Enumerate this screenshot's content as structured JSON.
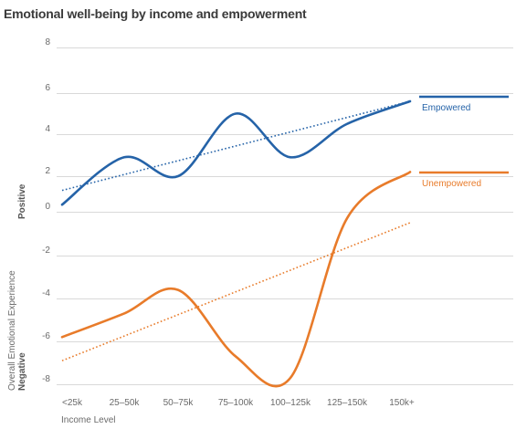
{
  "title": "Emotional well-being by income and empowerment",
  "chart_data": {
    "type": "line",
    "title": "Emotional well-being by income and empowerment",
    "xlabel": "Income Level",
    "ylabel": "Overall Emotional Experience",
    "ylabel_positive": "Positive",
    "ylabel_negative": "Negative",
    "categories": [
      "<25k",
      "25–50k",
      "50–75k",
      "75–100k",
      "100–125k",
      "125–150k",
      "150k+"
    ],
    "y_ticks": [
      "8",
      "6",
      "4",
      "2",
      "0",
      "-2",
      "-4",
      "-6",
      "-8"
    ],
    "series": [
      {
        "name": "Empowered",
        "color": "#2563a8",
        "values": [
          0.4,
          2.9,
          2.0,
          5.0,
          2.9,
          4.5,
          5.6
        ],
        "trendline": [
          1.2,
          5.6
        ]
      },
      {
        "name": "Unempowered",
        "color": "#e87b2a",
        "values": [
          -5.8,
          -4.7,
          -3.6,
          -6.7,
          -7.7,
          -0.3,
          2.2
        ],
        "trendline": [
          -6.9,
          -0.5
        ]
      }
    ],
    "grid": true,
    "legend": "right"
  }
}
